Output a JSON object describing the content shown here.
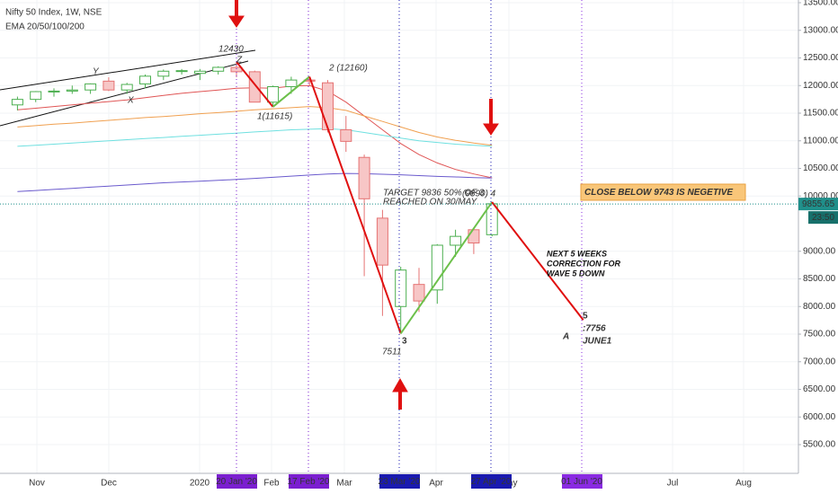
{
  "chart_data": {
    "type": "candlestick",
    "title": "Nifty 50 Index, 1W, NSE",
    "subtitle": "EMA 20/50/100/200",
    "open": [
      11650,
      11750,
      11890,
      11900,
      11920,
      12080,
      11920,
      12030,
      12170,
      12260,
      12220,
      12260,
      12330,
      12250,
      11700,
      11980,
      12100,
      12050,
      11200,
      10700,
      9600,
      8000,
      8400,
      8300,
      9110,
      9390,
      9300
    ],
    "high": [
      11800,
      11900,
      11950,
      12000,
      12040,
      12150,
      12050,
      12200,
      12290,
      12300,
      12300,
      12350,
      12430,
      12270,
      12000,
      12160,
      12160,
      12100,
      11450,
      10750,
      9750,
      8720,
      8700,
      9130,
      9390,
      9400,
      9890
    ],
    "low": [
      11550,
      11700,
      11800,
      11850,
      11850,
      11900,
      11850,
      11950,
      12100,
      12200,
      12100,
      12200,
      12150,
      11700,
      11615,
      11850,
      12000,
      11150,
      10800,
      8550,
      7830,
      7511,
      7900,
      8050,
      8900,
      8950,
      9270
    ],
    "close": [
      11750,
      11890,
      11900,
      11920,
      12030,
      11920,
      12020,
      12170,
      12260,
      12270,
      12260,
      12330,
      12250,
      11700,
      11980,
      12100,
      12080,
      11200,
      10990,
      9950,
      8750,
      8660,
      8100,
      9110,
      9270,
      9150,
      9860
    ],
    "up_color": "#4caf50",
    "down_color": "#e57373",
    "series": [
      {
        "color": "#e05555",
        "values": [
          11560,
          11590,
          11620,
          11650,
          11680,
          11710,
          11740,
          11780,
          11820,
          11860,
          11890,
          11920,
          11950,
          11960,
          11950,
          11990,
          12000,
          11900,
          11700,
          11450,
          11200,
          10950,
          10750,
          10600,
          10480,
          10400,
          10330
        ]
      },
      {
        "color": "#f0a050",
        "values": [
          11250,
          11275,
          11300,
          11320,
          11345,
          11370,
          11395,
          11420,
          11440,
          11465,
          11490,
          11510,
          11535,
          11560,
          11580,
          11600,
          11620,
          11600,
          11550,
          11450,
          11350,
          11250,
          11150,
          11070,
          11010,
          10960,
          10920
        ]
      },
      {
        "color": "#6fe0e0",
        "values": [
          10900,
          10920,
          10940,
          10960,
          10980,
          11000,
          11020,
          11040,
          11060,
          11080,
          11100,
          11120,
          11140,
          11160,
          11180,
          11200,
          11210,
          11220,
          11200,
          11150,
          11100,
          11050,
          11000,
          10970,
          10940,
          10920,
          10900
        ]
      },
      {
        "color": "#6a5acd",
        "values": [
          10080,
          10100,
          10120,
          10140,
          10160,
          10180,
          10200,
          10220,
          10240,
          10255,
          10270,
          10285,
          10300,
          10320,
          10340,
          10360,
          10380,
          10400,
          10410,
          10405,
          10395,
          10385,
          10370,
          10355,
          10345,
          10335,
          10325
        ]
      }
    ],
    "ylim": [
      4980,
      13549
    ],
    "yticks": [
      {
        "value": 5500,
        "label": "5500.00"
      },
      {
        "value": 6000,
        "label": "6000.00"
      },
      {
        "value": 6500,
        "label": "6500.00"
      },
      {
        "value": 7000,
        "label": "7000.00"
      },
      {
        "value": 7500,
        "label": "7500.00"
      },
      {
        "value": 8000,
        "label": "8000.00"
      },
      {
        "value": 8500,
        "label": "8500.00"
      },
      {
        "value": 9000,
        "label": "9000.00"
      },
      {
        "value": 10000,
        "label": "10000.00"
      },
      {
        "value": 10500,
        "label": "10500.00"
      },
      {
        "value": 11000,
        "label": "11000.00"
      },
      {
        "value": 11500,
        "label": "11500.00"
      },
      {
        "value": 12000,
        "label": "12000.00"
      },
      {
        "value": 12500,
        "label": "12500.00"
      },
      {
        "value": 13000,
        "label": "13000.00"
      },
      {
        "value": 13500,
        "label": "13500.00"
      }
    ],
    "grid": true,
    "x_labels": [
      "Nov",
      "Dec",
      "2020",
      "Feb",
      "Mar",
      "Apr",
      "May",
      "Jul",
      "Aug"
    ],
    "date_markers": [
      {
        "label": "20 Jan '20",
        "color": "#7b1fd0"
      },
      {
        "label": "17 Feb '20",
        "color": "#7b1fd0"
      },
      {
        "label": "23 Mar '20",
        "color": "#1a1ab0"
      },
      {
        "label": "27 Apr '20",
        "color": "#1a1ab0"
      },
      {
        "label": "01 Jun '20",
        "color": "#8a2be2"
      }
    ],
    "last_price": {
      "value": 9855.65,
      "label": "9855.65",
      "countdown": "23:50",
      "color": "#1f8f8a"
    },
    "wave_points": [
      12430,
      11615,
      12160,
      7511,
      9890,
      7756
    ],
    "wave_labels": [
      "1(11615)",
      "2 (12160)",
      "7511",
      "(9890) 4",
      ":7756"
    ],
    "wave_numbers": [
      "3",
      "5"
    ],
    "pattern_labels": [
      "X",
      "Y",
      "Z",
      "A"
    ],
    "notes": {
      "target": "TARGET 9836 50% OF 3",
      "reached": "REACHED ON 30/MAY",
      "warning": "CLOSE BELOW 9743 IS NEGETIVE",
      "forecast": [
        "NEXT 5 WEEKS",
        "CORRECTION FOR",
        "WAVE 5 DOWN"
      ],
      "forecast_date": "JUNE1"
    }
  }
}
